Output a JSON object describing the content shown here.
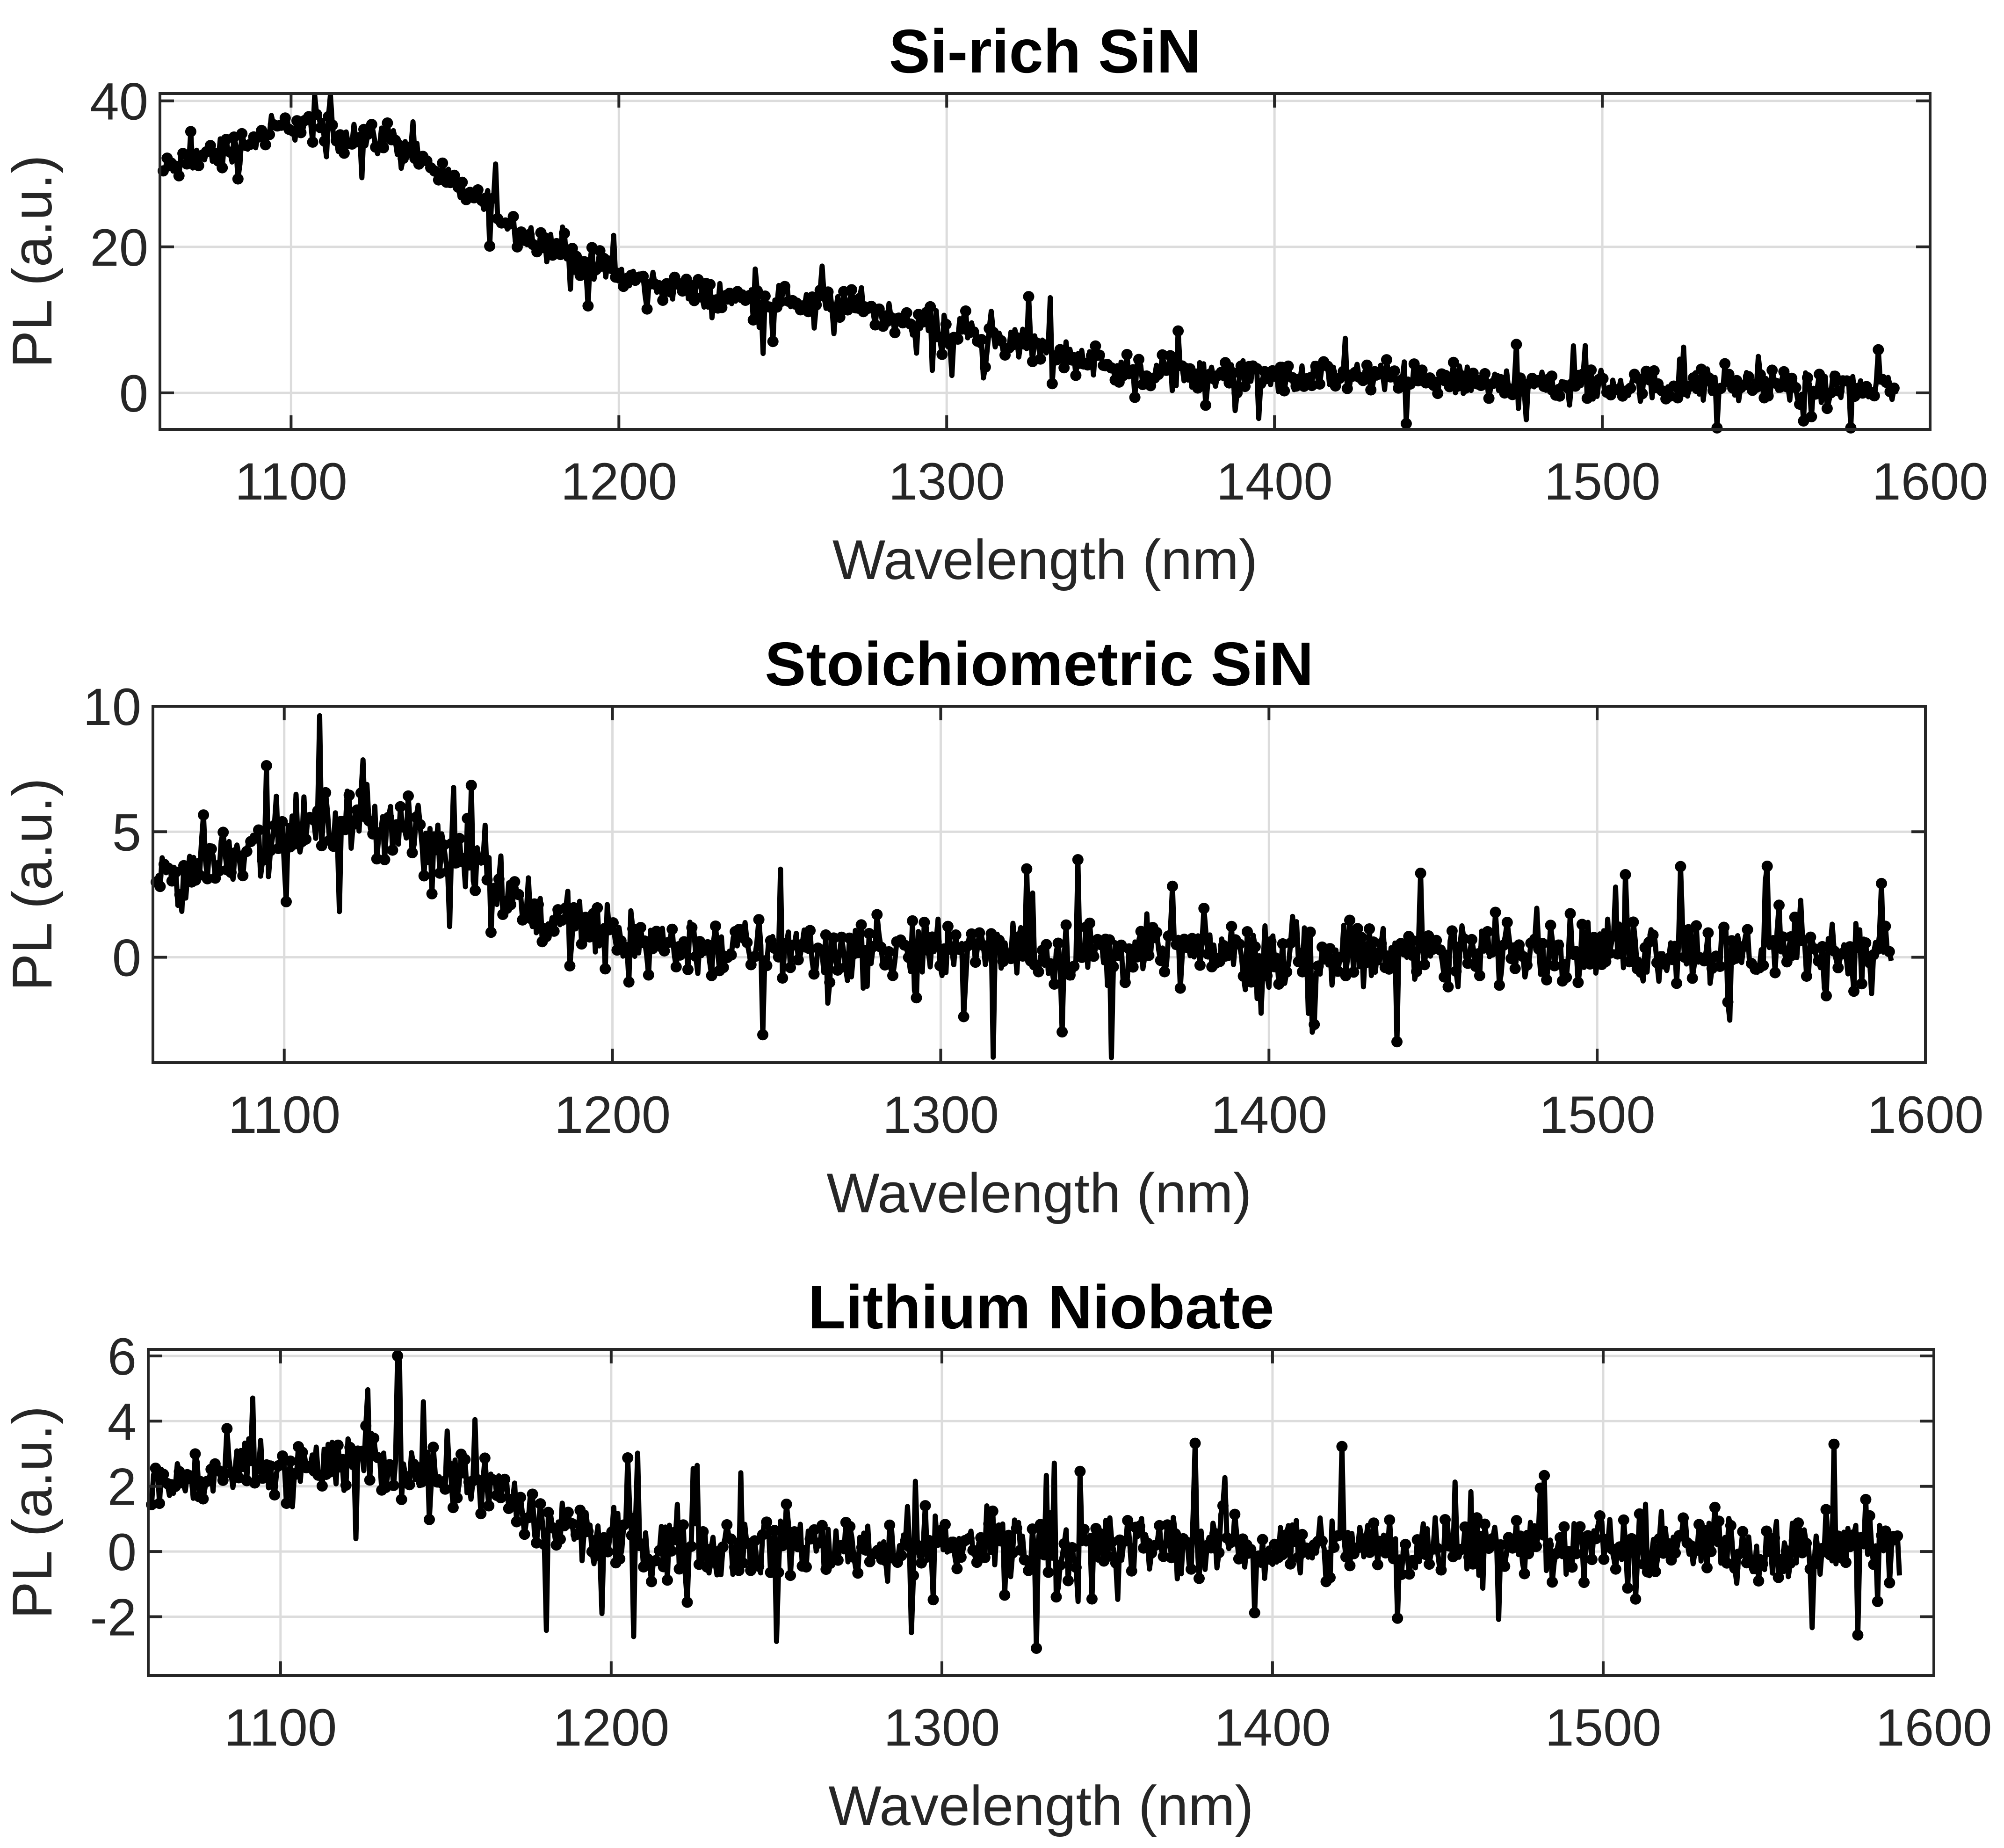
{
  "chart_data": [
    {
      "type": "line",
      "title": "Si-rich SiN",
      "xlabel": "Wavelength (nm)",
      "ylabel": "PL (a.u.)",
      "xlim": [
        1060,
        1600
      ],
      "ylim": [
        -5,
        41
      ],
      "xticks": [
        1100,
        1200,
        1300,
        1400,
        1500,
        1600
      ],
      "yticks": [
        0,
        20,
        40
      ],
      "grid": true,
      "series": [
        {
          "color": "#000000",
          "marker": "circle",
          "x": [
            1060,
            1070,
            1080,
            1090,
            1100,
            1110,
            1120,
            1130,
            1140,
            1150,
            1160,
            1170,
            1180,
            1190,
            1200,
            1210,
            1220,
            1230,
            1240,
            1250,
            1260,
            1270,
            1280,
            1290,
            1300,
            1310,
            1320,
            1330,
            1340,
            1350,
            1360,
            1370,
            1380,
            1390,
            1400,
            1410,
            1420,
            1430,
            1440,
            1450,
            1460,
            1470,
            1480,
            1490,
            1500,
            1510,
            1520,
            1530,
            1540,
            1550,
            1560,
            1570,
            1580,
            1590
          ],
          "y": [
            30,
            32,
            33,
            35,
            37,
            36,
            35,
            35,
            32,
            28,
            26,
            22,
            20,
            18,
            16,
            15,
            14,
            13,
            13,
            13,
            12,
            12,
            11,
            10,
            9,
            8,
            7,
            6,
            5,
            4,
            3,
            3,
            2,
            2,
            2,
            2,
            2,
            2,
            2,
            1.5,
            1.5,
            1.5,
            1.5,
            1,
            1,
            1,
            1,
            1,
            1,
            1,
            0.5,
            0.5,
            0.5,
            0.5
          ],
          "noise": 3.5
        }
      ]
    },
    {
      "type": "line",
      "title": "Stoichiometric SiN",
      "xlabel": "Wavelength (nm)",
      "ylabel": "PL (a.u.)",
      "xlim": [
        1060,
        1600
      ],
      "ylim": [
        -4.2,
        10
      ],
      "xticks": [
        1100,
        1200,
        1300,
        1400,
        1500,
        1600
      ],
      "yticks": [
        0,
        5,
        10
      ],
      "grid": true,
      "series": [
        {
          "color": "#000000",
          "marker": "circle",
          "x": [
            1060,
            1080,
            1100,
            1120,
            1140,
            1160,
            1180,
            1200,
            1220,
            1240,
            1260,
            1280,
            1300,
            1320,
            1340,
            1360,
            1380,
            1400,
            1420,
            1440,
            1460,
            1480,
            1500,
            1520,
            1540,
            1560,
            1580,
            1590
          ],
          "y": [
            3,
            4,
            5,
            5.5,
            5,
            3.5,
            1.5,
            0.8,
            0.5,
            0.3,
            0.3,
            0.2,
            0.2,
            0.2,
            0.2,
            0.2,
            0.2,
            0.2,
            0.2,
            0.2,
            0.3,
            0.3,
            0.3,
            0.3,
            0.3,
            0.2,
            0.2,
            0.2
          ],
          "noise": 2.0
        }
      ]
    },
    {
      "type": "line",
      "title": "Lithium Niobate",
      "xlabel": "Wavelength (nm)",
      "ylabel": "PL (a.u.)",
      "xlim": [
        1060,
        1600
      ],
      "ylim": [
        -3.8,
        6.2
      ],
      "xticks": [
        1100,
        1200,
        1300,
        1400,
        1500,
        1600
      ],
      "yticks": [
        -2,
        0,
        2,
        4,
        6
      ],
      "grid": true,
      "series": [
        {
          "color": "#000000",
          "marker": "circle",
          "x": [
            1060,
            1080,
            1100,
            1120,
            1140,
            1160,
            1180,
            1200,
            1220,
            1240,
            1260,
            1280,
            1300,
            1320,
            1340,
            1360,
            1380,
            1400,
            1420,
            1440,
            1460,
            1480,
            1500,
            1520,
            1540,
            1560,
            1580,
            1590
          ],
          "y": [
            2,
            2.3,
            2.5,
            2.7,
            2.7,
            2.2,
            0.8,
            0.3,
            0.2,
            0.2,
            0.2,
            0.2,
            0.2,
            0.2,
            0.2,
            0.2,
            0.2,
            0.2,
            0.2,
            0.2,
            0.2,
            0.2,
            0.2,
            0.2,
            0.2,
            0.2,
            0.2,
            0.2
          ],
          "noise": 1.6
        }
      ]
    }
  ]
}
